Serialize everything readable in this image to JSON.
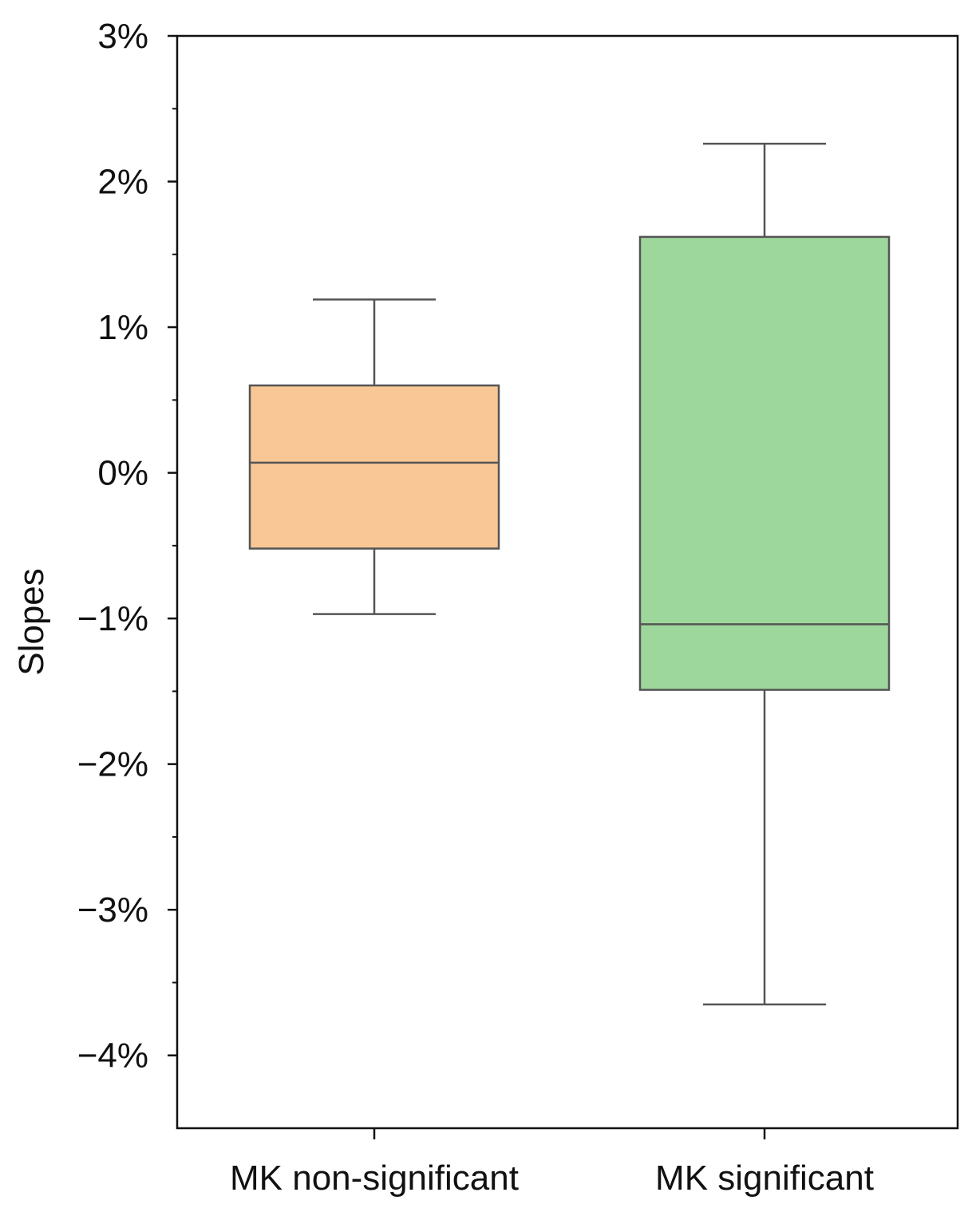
{
  "chart_data": {
    "type": "box",
    "title": "",
    "xlabel": "",
    "ylabel": "Slopes",
    "ylim": [
      -4.5,
      3
    ],
    "y_unit": "%",
    "y_ticks": [
      3,
      2,
      1,
      0,
      -1,
      -2,
      -3,
      -4
    ],
    "y_tick_labels": [
      "3%",
      "2%",
      "1%",
      "0%",
      "−1%",
      "−2%",
      "−3%",
      "−4%"
    ],
    "categories": [
      "MK non-significant",
      "MK significant"
    ],
    "boxes": [
      {
        "name": "MK non-significant",
        "whisker_low": -0.97,
        "q1": -0.52,
        "median": 0.07,
        "q3": 0.6,
        "whisker_high": 1.19,
        "color": "#f9c796"
      },
      {
        "name": "MK significant",
        "whisker_low": -3.65,
        "q1": -1.49,
        "median": -1.04,
        "q3": 1.62,
        "whisker_high": 2.26,
        "color": "#9ed79c"
      }
    ],
    "grid": false,
    "legend": "none"
  }
}
